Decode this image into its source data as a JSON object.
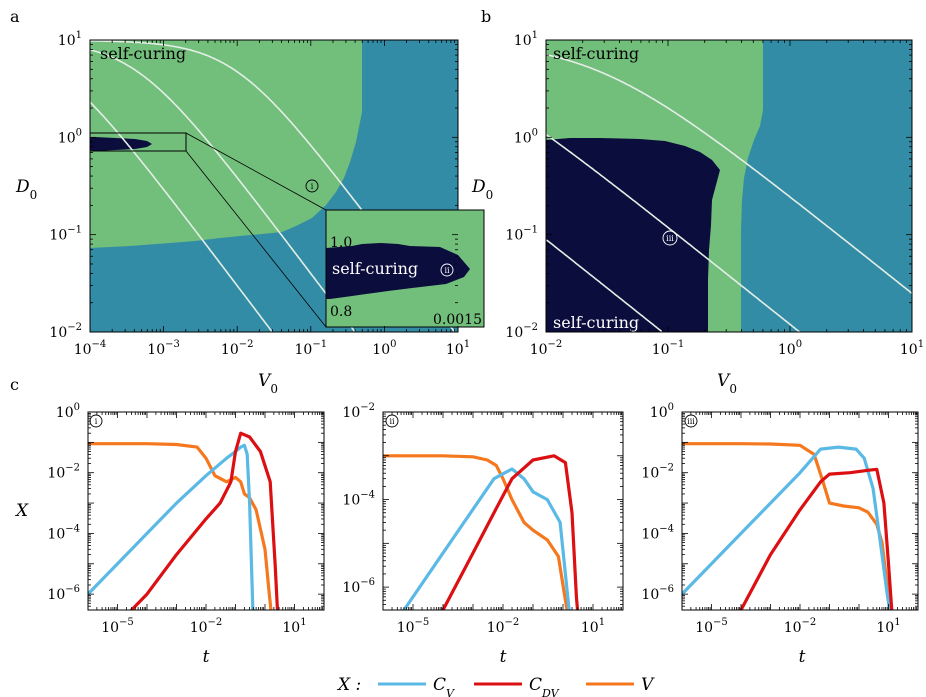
{
  "colors": {
    "green": "#72BE7B",
    "teal": "#338CA6",
    "navy": "#0B0D3D",
    "contour": "#E3EEE6",
    "cv": "#5BB9E6",
    "cdv": "#DC0F12",
    "v": "#F5781F"
  },
  "panel_labels": {
    "a": "a",
    "b": "b",
    "c": "c"
  },
  "marks": {
    "i": "i",
    "ii": "ii",
    "iii": "iii"
  },
  "chart_data": [
    {
      "id": "a",
      "type": "heatmap",
      "title": "",
      "xlabel": "V",
      "xlabel_sub": "0",
      "ylabel": "D",
      "ylabel_sub": "0",
      "xlim": [
        0.0001,
        10
      ],
      "ylim": [
        0.01,
        10
      ],
      "xticks": [
        {
          "base": "10",
          "exp": "−4"
        },
        {
          "base": "10",
          "exp": "−3"
        },
        {
          "base": "10",
          "exp": "−2"
        },
        {
          "base": "10",
          "exp": "−1"
        },
        {
          "base": "10",
          "exp": "0"
        },
        {
          "base": "10",
          "exp": "1"
        }
      ],
      "yticks": [
        {
          "base": "10",
          "exp": "−2"
        },
        {
          "base": "10",
          "exp": "−1"
        },
        {
          "base": "10",
          "exp": "0"
        },
        {
          "base": "10",
          "exp": "1"
        }
      ],
      "region_label": "self-curing",
      "inset": {
        "region_label": "self-curing",
        "y_top_label": "1.0",
        "y_bottom_label": "0.8",
        "x_right_label": "0.0015"
      },
      "green_boundary": [
        [
          0.0001,
          0.085
        ],
        [
          0.0009,
          0.085
        ],
        [
          0.002,
          0.1
        ],
        [
          0.005,
          0.12
        ],
        [
          0.012,
          0.15
        ],
        [
          0.03,
          0.2
        ],
        [
          0.08,
          0.28
        ],
        [
          0.15,
          0.35
        ],
        [
          0.25,
          0.45
        ],
        [
          0.35,
          0.6
        ],
        [
          0.5,
          0.85
        ],
        [
          0.5,
          10
        ]
      ],
      "contours": [
        0.01,
        0.1,
        1
      ]
    },
    {
      "id": "b",
      "type": "heatmap",
      "xlabel": "V",
      "xlabel_sub": "0",
      "ylabel": "D",
      "ylabel_sub": "0",
      "xlim": [
        0.01,
        10
      ],
      "ylim": [
        0.01,
        10
      ],
      "xticks": [
        {
          "base": "10",
          "exp": "−2"
        },
        {
          "base": "10",
          "exp": "−1"
        },
        {
          "base": "10",
          "exp": "0"
        },
        {
          "base": "10",
          "exp": "1"
        }
      ],
      "yticks": [
        {
          "base": "10",
          "exp": "−2"
        },
        {
          "base": "10",
          "exp": "−1"
        },
        {
          "base": "10",
          "exp": "0"
        },
        {
          "base": "10",
          "exp": "1"
        }
      ],
      "region_label_top": "self-curing",
      "region_label_bottom": "self-curing",
      "green_boundary": [
        [
          0.4,
          0.01
        ],
        [
          0.4,
          0.2
        ],
        [
          0.45,
          0.4
        ],
        [
          0.5,
          0.7
        ],
        [
          0.55,
          0.9
        ],
        [
          0.58,
          1.0
        ],
        [
          0.58,
          10
        ]
      ],
      "contours": [
        0.001,
        0.01,
        0.1
      ]
    },
    {
      "id": "c-i",
      "type": "line",
      "xlabel": "t",
      "ylabel": "X",
      "xlim": [
        1e-06,
        100
      ],
      "ylim": [
        3e-07,
        1
      ],
      "xticks": [
        {
          "base": "10",
          "exp": "−5"
        },
        {
          "base": "10",
          "exp": "−2"
        },
        {
          "base": "10",
          "exp": "1"
        }
      ],
      "yticks": [
        {
          "base": "10",
          "exp": "0"
        },
        {
          "base": "10",
          "exp": "−2"
        },
        {
          "base": "10",
          "exp": "−4"
        },
        {
          "base": "10",
          "exp": "−6"
        }
      ],
      "series": [
        {
          "name": "C_V",
          "x": [
            1e-06,
            1e-05,
            0.0001,
            0.001,
            0.01,
            0.05,
            0.1,
            0.15,
            0.2,
            0.25,
            0.3,
            0.4
          ],
          "y": [
            1e-06,
            1e-05,
            0.0001,
            0.001,
            0.008,
            0.03,
            0.05,
            0.07,
            0.08,
            0.04,
            0.001,
            1e-07
          ]
        },
        {
          "name": "C_DV",
          "x": [
            3e-07,
            1e-05,
            0.0001,
            0.001,
            0.01,
            0.03,
            0.07,
            0.1,
            0.15,
            0.3,
            0.7,
            1.5,
            2.2,
            2.8
          ],
          "y": [
            1e-07,
            1e-07,
            1e-06,
            2e-05,
            0.0003,
            0.001,
            0.005,
            0.05,
            0.2,
            0.15,
            0.05,
            0.005,
            1e-05,
            1e-07
          ]
        },
        {
          "name": "V",
          "x": [
            1e-06,
            0.0001,
            0.001,
            0.005,
            0.01,
            0.02,
            0.05,
            0.1,
            0.15,
            0.2,
            0.3,
            0.5,
            1,
            1.4,
            1.8
          ],
          "y": [
            0.09,
            0.09,
            0.085,
            0.07,
            0.03,
            0.008,
            0.005,
            0.007,
            0.005,
            0.002,
            0.0015,
            0.0006,
            3e-05,
            1e-06,
            1e-07
          ]
        }
      ]
    },
    {
      "id": "c-ii",
      "type": "line",
      "xlabel": "t",
      "ylabel": "",
      "xlim": [
        1e-06,
        100
      ],
      "ylim": [
        3e-07,
        0.01
      ],
      "xticks": [
        {
          "base": "10",
          "exp": "−5"
        },
        {
          "base": "10",
          "exp": "−2"
        },
        {
          "base": "10",
          "exp": "1"
        }
      ],
      "yticks": [
        {
          "base": "10",
          "exp": "−2"
        },
        {
          "base": "10",
          "exp": "−4"
        },
        {
          "base": "10",
          "exp": "−6"
        }
      ],
      "series": [
        {
          "name": "C_V",
          "x": [
            5e-06,
            5e-05,
            0.0005,
            0.005,
            0.02,
            0.05,
            0.1,
            0.3,
            0.8,
            1.2,
            1.6,
            2.2
          ],
          "y": [
            3e-07,
            3e-06,
            3e-05,
            0.0003,
            0.0005,
            0.0003,
            0.00015,
            0.0001,
            3e-05,
            2e-06,
            3e-07,
            1e-07
          ]
        },
        {
          "name": "C_DV",
          "x": [
            0.0001,
            0.001,
            0.005,
            0.02,
            0.1,
            0.5,
            1.2,
            2,
            2.8,
            3.5
          ],
          "y": [
            3e-07,
            6e-06,
            5e-05,
            0.0003,
            0.0008,
            0.001,
            0.0007,
            5e-05,
            6e-07,
            1e-07
          ]
        },
        {
          "name": "V",
          "x": [
            1e-06,
            0.0001,
            0.001,
            0.003,
            0.006,
            0.01,
            0.02,
            0.05,
            0.1,
            0.3,
            0.7,
            1.2,
            1.8
          ],
          "y": [
            0.001,
            0.001,
            0.00095,
            0.0008,
            0.0006,
            0.0003,
            0.0001,
            3e-05,
            2e-05,
            1.2e-05,
            5e-06,
            5e-07,
            1e-07
          ]
        }
      ]
    },
    {
      "id": "c-iii",
      "type": "line",
      "xlabel": "t",
      "ylabel": "",
      "xlim": [
        1e-06,
        100
      ],
      "ylim": [
        3e-07,
        1
      ],
      "xticks": [
        {
          "base": "10",
          "exp": "−5"
        },
        {
          "base": "10",
          "exp": "−2"
        },
        {
          "base": "10",
          "exp": "1"
        }
      ],
      "yticks": [
        {
          "base": "10",
          "exp": "0"
        },
        {
          "base": "10",
          "exp": "−2"
        },
        {
          "base": "10",
          "exp": "−4"
        },
        {
          "base": "10",
          "exp": "−6"
        }
      ],
      "series": [
        {
          "name": "C_V",
          "x": [
            1e-06,
            1e-05,
            0.0001,
            0.001,
            0.01,
            0.05,
            0.2,
            0.8,
            1.5,
            3,
            6,
            9,
            13
          ],
          "y": [
            1e-06,
            1e-05,
            0.0001,
            0.001,
            0.01,
            0.06,
            0.07,
            0.06,
            0.03,
            0.003,
            2e-05,
            1e-06,
            1e-07
          ]
        },
        {
          "name": "C_DV",
          "x": [
            0.0001,
            0.001,
            0.01,
            0.05,
            0.1,
            0.5,
            2,
            4,
            7,
            10,
            14
          ],
          "y": [
            3e-07,
            2e-05,
            0.0006,
            0.005,
            0.009,
            0.01,
            0.012,
            0.013,
            0.001,
            1e-05,
            1e-07
          ]
        },
        {
          "name": "V",
          "x": [
            1e-06,
            0.0001,
            0.001,
            0.01,
            0.03,
            0.06,
            0.1,
            0.3,
            1,
            2,
            4,
            6,
            9,
            12
          ],
          "y": [
            0.09,
            0.09,
            0.088,
            0.08,
            0.04,
            0.005,
            0.001,
            0.0008,
            0.0007,
            0.0005,
            0.0002,
            5e-05,
            2e-06,
            1e-07
          ]
        }
      ]
    }
  ],
  "legend": {
    "prefix": "X :",
    "items": [
      {
        "label": "C",
        "sub": "V",
        "color_key": "cv"
      },
      {
        "label": "C",
        "sub": "DV",
        "color_key": "cdv"
      },
      {
        "label": "V",
        "sub": "",
        "color_key": "v"
      }
    ]
  }
}
